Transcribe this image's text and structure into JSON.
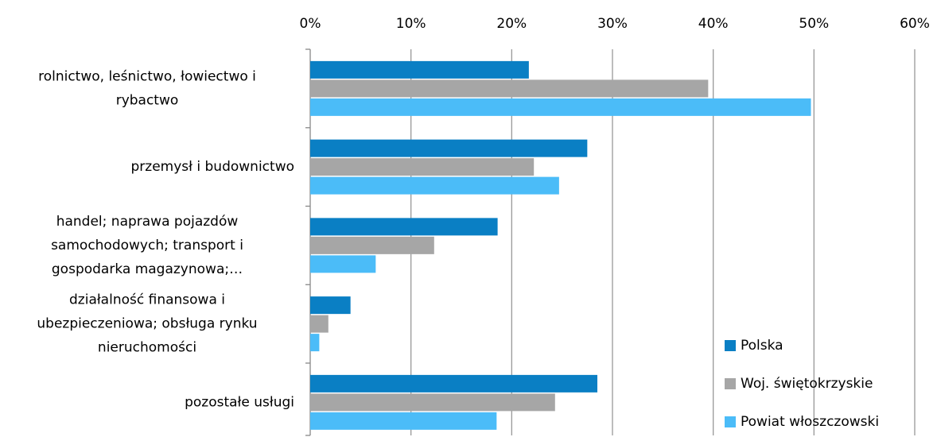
{
  "chart_data": {
    "type": "bar",
    "orientation": "horizontal",
    "categories": [
      "rolnictwo, leśnictwo, łowiectwo i\nrybactwo",
      "przemysł i budownictwo",
      "handel; naprawa pojazdów\nsamochodowych; transport i\ngospodarka magazynowa;…",
      "działalność finansowa i\nubezpieczeniowa; obsługa rynku\nnieruchomości",
      "pozostałe usługi"
    ],
    "series": [
      {
        "name": "Polska",
        "color": "#0a7fc4",
        "values": [
          21.7,
          27.5,
          18.6,
          4.0,
          28.5
        ]
      },
      {
        "name": "Woj. świętokrzyskie",
        "color": "#a6a6a6",
        "values": [
          39.5,
          22.2,
          12.3,
          1.8,
          24.3
        ]
      },
      {
        "name": "Powiat włoszczowski",
        "color": "#4bbcf8",
        "values": [
          49.7,
          24.7,
          6.5,
          0.9,
          18.5
        ]
      }
    ],
    "xlim": [
      0,
      60
    ],
    "xticks": [
      {
        "value": 0,
        "label": "0%"
      },
      {
        "value": 10,
        "label": "10%"
      },
      {
        "value": 20,
        "label": "20%"
      },
      {
        "value": 30,
        "label": "30%"
      },
      {
        "value": 40,
        "label": "40%"
      },
      {
        "value": 50,
        "label": "50%"
      },
      {
        "value": 60,
        "label": "60%"
      }
    ],
    "grid": true,
    "legend": "bottom-right"
  }
}
